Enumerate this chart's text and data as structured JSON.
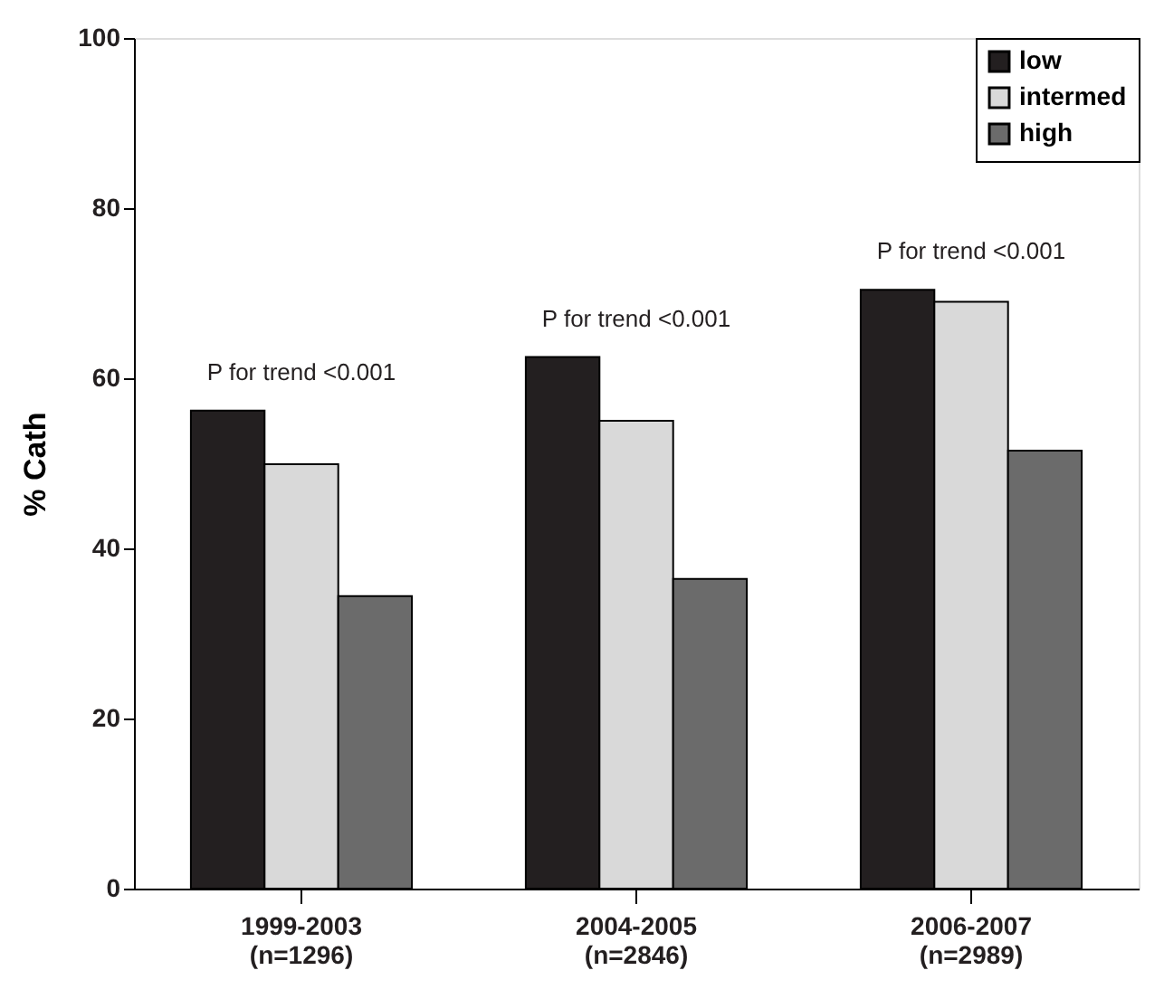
{
  "chart_data": {
    "type": "bar",
    "ylabel": "% Cath",
    "categories": [
      "1999-2003\n(n=1296)",
      "2004-2005\n(n=2846)",
      "2006-2007\n(n=2989)"
    ],
    "series": [
      {
        "name": "low",
        "color": "#231f20",
        "values": [
          56.2,
          62.5,
          70.4
        ]
      },
      {
        "name": "intermed",
        "color": "#d9d9d9",
        "values": [
          49.9,
          55.0,
          69.0
        ]
      },
      {
        "name": "high",
        "color": "#6b6b6b",
        "values": [
          34.4,
          36.4,
          51.5
        ]
      }
    ],
    "ylim": [
      0,
      100
    ],
    "yticks": [
      0,
      20,
      40,
      60,
      80,
      100
    ],
    "grid": false,
    "legend": "top right",
    "annotations": [
      "P for trend <0.001",
      "P for trend <0.001",
      "P for trend <0.001"
    ]
  }
}
